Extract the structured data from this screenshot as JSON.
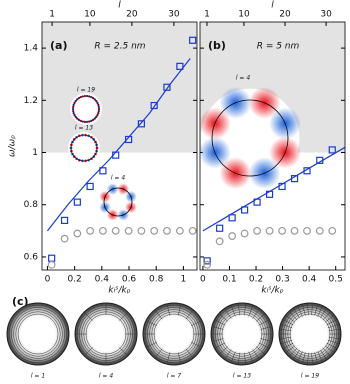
{
  "chart_data": [
    {
      "type": "scatter",
      "label": "(a)",
      "annotation": "R = 2.5 nm",
      "xlabel": "kₗˢ/kₚ",
      "ylabel": "ω/ωₚ",
      "x2label": "l",
      "xlim": [
        -0.04,
        1.1
      ],
      "xticks": [
        0,
        0.2,
        0.4,
        0.6,
        0.8,
        1
      ],
      "x2lim": [
        -1.4,
        35.5
      ],
      "x2ticks": [
        1,
        10,
        20,
        30
      ],
      "ylim": [
        0.55,
        1.5
      ],
      "yticks": [
        0.6,
        0.8,
        1,
        1.2,
        1.4
      ],
      "show_ytick_labels": true,
      "shade_above": 1,
      "shade_color": "#e3e3e3",
      "inset_labels": [
        "l = 19",
        "l = 13",
        "l = 4"
      ],
      "series": [
        {
          "marker": "square",
          "color": "#1a3bd1",
          "x": [
            0.031,
            0.126,
            0.22,
            0.314,
            0.408,
            0.502,
            0.597,
            0.691,
            0.785,
            0.879,
            0.974,
            1.068
          ],
          "values": [
            0.595,
            0.74,
            0.81,
            0.87,
            0.93,
            0.99,
            1.05,
            1.11,
            1.18,
            1.25,
            1.33,
            1.43
          ]
        },
        {
          "marker": "circle",
          "color": "#999999",
          "x": [
            0.031,
            0.126,
            0.22,
            0.314,
            0.408,
            0.502,
            0.597,
            0.691,
            0.785,
            0.879,
            0.974,
            1.068
          ],
          "values": [
            0.57,
            0.67,
            0.69,
            0.7,
            0.7,
            0.7,
            0.7,
            0.7,
            0.7,
            0.7,
            0.7,
            0.7
          ]
        },
        {
          "marker": "line",
          "color": "#1a3bd1",
          "x": [
            0,
            0.15,
            0.3,
            0.45,
            0.6,
            0.75,
            0.9,
            1.05
          ],
          "values": [
            0.7,
            0.8,
            0.89,
            0.97,
            1.06,
            1.15,
            1.26,
            1.36
          ]
        }
      ]
    },
    {
      "type": "scatter",
      "label": "(b)",
      "annotation": "R = 5 nm",
      "xlabel": "kₗˢ/kₚ",
      "x2label": "l",
      "xlim": [
        -0.011,
        0.535
      ],
      "xticks": [
        0,
        0.1,
        0.2,
        0.3,
        0.4,
        0.5
      ],
      "x2lim": [
        -0.7,
        34.6
      ],
      "x2ticks": [
        1,
        10,
        20,
        30
      ],
      "ylim": [
        0.55,
        1.5
      ],
      "yticks": [
        0.6,
        0.8,
        1,
        1.2,
        1.4
      ],
      "show_ytick_labels": false,
      "shade_above": 1,
      "shade_color": "#e3e3e3",
      "inset_labels": [
        "l = 4"
      ],
      "series": [
        {
          "marker": "square",
          "color": "#1a3bd1",
          "x": [
            0.016,
            0.063,
            0.11,
            0.157,
            0.204,
            0.251,
            0.298,
            0.345,
            0.392,
            0.44,
            0.487
          ],
          "values": [
            0.585,
            0.71,
            0.75,
            0.78,
            0.81,
            0.84,
            0.87,
            0.9,
            0.93,
            0.97,
            1.01
          ]
        },
        {
          "marker": "circle",
          "color": "#999999",
          "x": [
            0.016,
            0.063,
            0.11,
            0.157,
            0.204,
            0.251,
            0.298,
            0.345,
            0.392,
            0.44,
            0.487
          ],
          "values": [
            0.57,
            0.66,
            0.68,
            0.69,
            0.7,
            0.7,
            0.7,
            0.7,
            0.7,
            0.7,
            0.7
          ]
        },
        {
          "marker": "line",
          "color": "#1a3bd1",
          "x": [
            0,
            0.1,
            0.2,
            0.3,
            0.4,
            0.535
          ],
          "values": [
            0.7,
            0.76,
            0.82,
            0.88,
            0.94,
            1.02
          ]
        }
      ]
    }
  ],
  "panel_c": {
    "label": "(c)",
    "captions": [
      "l = 1",
      "l = 4",
      "l = 7",
      "l = 13",
      "l = 19"
    ]
  }
}
